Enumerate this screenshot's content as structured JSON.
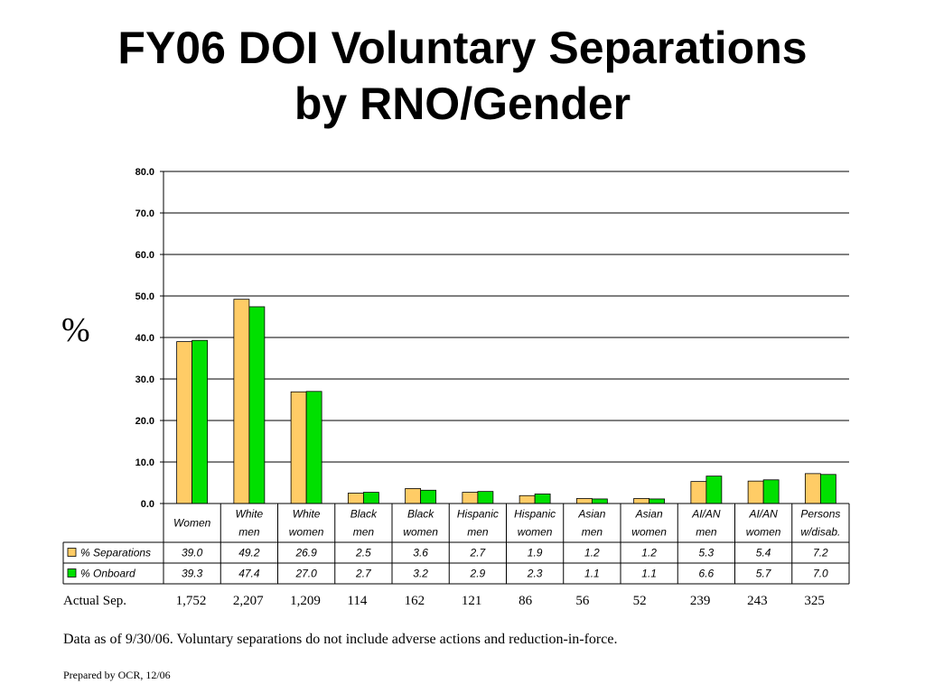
{
  "title": {
    "line1": "FY06 DOI Voluntary Separations",
    "line2": "by RNO/Gender"
  },
  "y_symbol": "%",
  "chart_data": {
    "type": "bar",
    "categories": [
      [
        "Women"
      ],
      [
        "White",
        "men"
      ],
      [
        "White",
        "women"
      ],
      [
        "Black",
        "men"
      ],
      [
        "Black",
        "women"
      ],
      [
        "Hispanic",
        "men"
      ],
      [
        "Hispanic",
        "women"
      ],
      [
        "Asian",
        "men"
      ],
      [
        "Asian",
        "women"
      ],
      [
        "AI/AN",
        "men"
      ],
      [
        "AI/AN",
        "women"
      ],
      [
        "Persons",
        "w/disab."
      ]
    ],
    "series": [
      {
        "name": "% Separations",
        "color": "#FFCC66",
        "values": [
          39.0,
          49.2,
          26.9,
          2.5,
          3.6,
          2.7,
          1.9,
          1.2,
          1.2,
          5.3,
          5.4,
          7.2
        ]
      },
      {
        "name": "% Onboard",
        "color": "#00E000",
        "values": [
          39.3,
          47.4,
          27.0,
          2.7,
          3.2,
          2.9,
          2.3,
          1.1,
          1.1,
          6.6,
          5.7,
          7.0
        ]
      }
    ],
    "ylim": [
      0,
      80
    ],
    "yticks": [
      "0.0",
      "10.0",
      "20.0",
      "30.0",
      "40.0",
      "50.0",
      "60.0",
      "70.0",
      "80.0"
    ],
    "grid": true,
    "data_table": true
  },
  "actual_sep": {
    "label": "Actual Sep.",
    "values": [
      "1,752",
      "2,207",
      "1,209",
      "114",
      "162",
      "121",
      "86",
      "56",
      "52",
      "239",
      "243",
      "325"
    ]
  },
  "note": "Data as of 9/30/06.  Voluntary separations do not include adverse actions and reduction-in-force.",
  "prepared_by": "Prepared by OCR, 12/06"
}
